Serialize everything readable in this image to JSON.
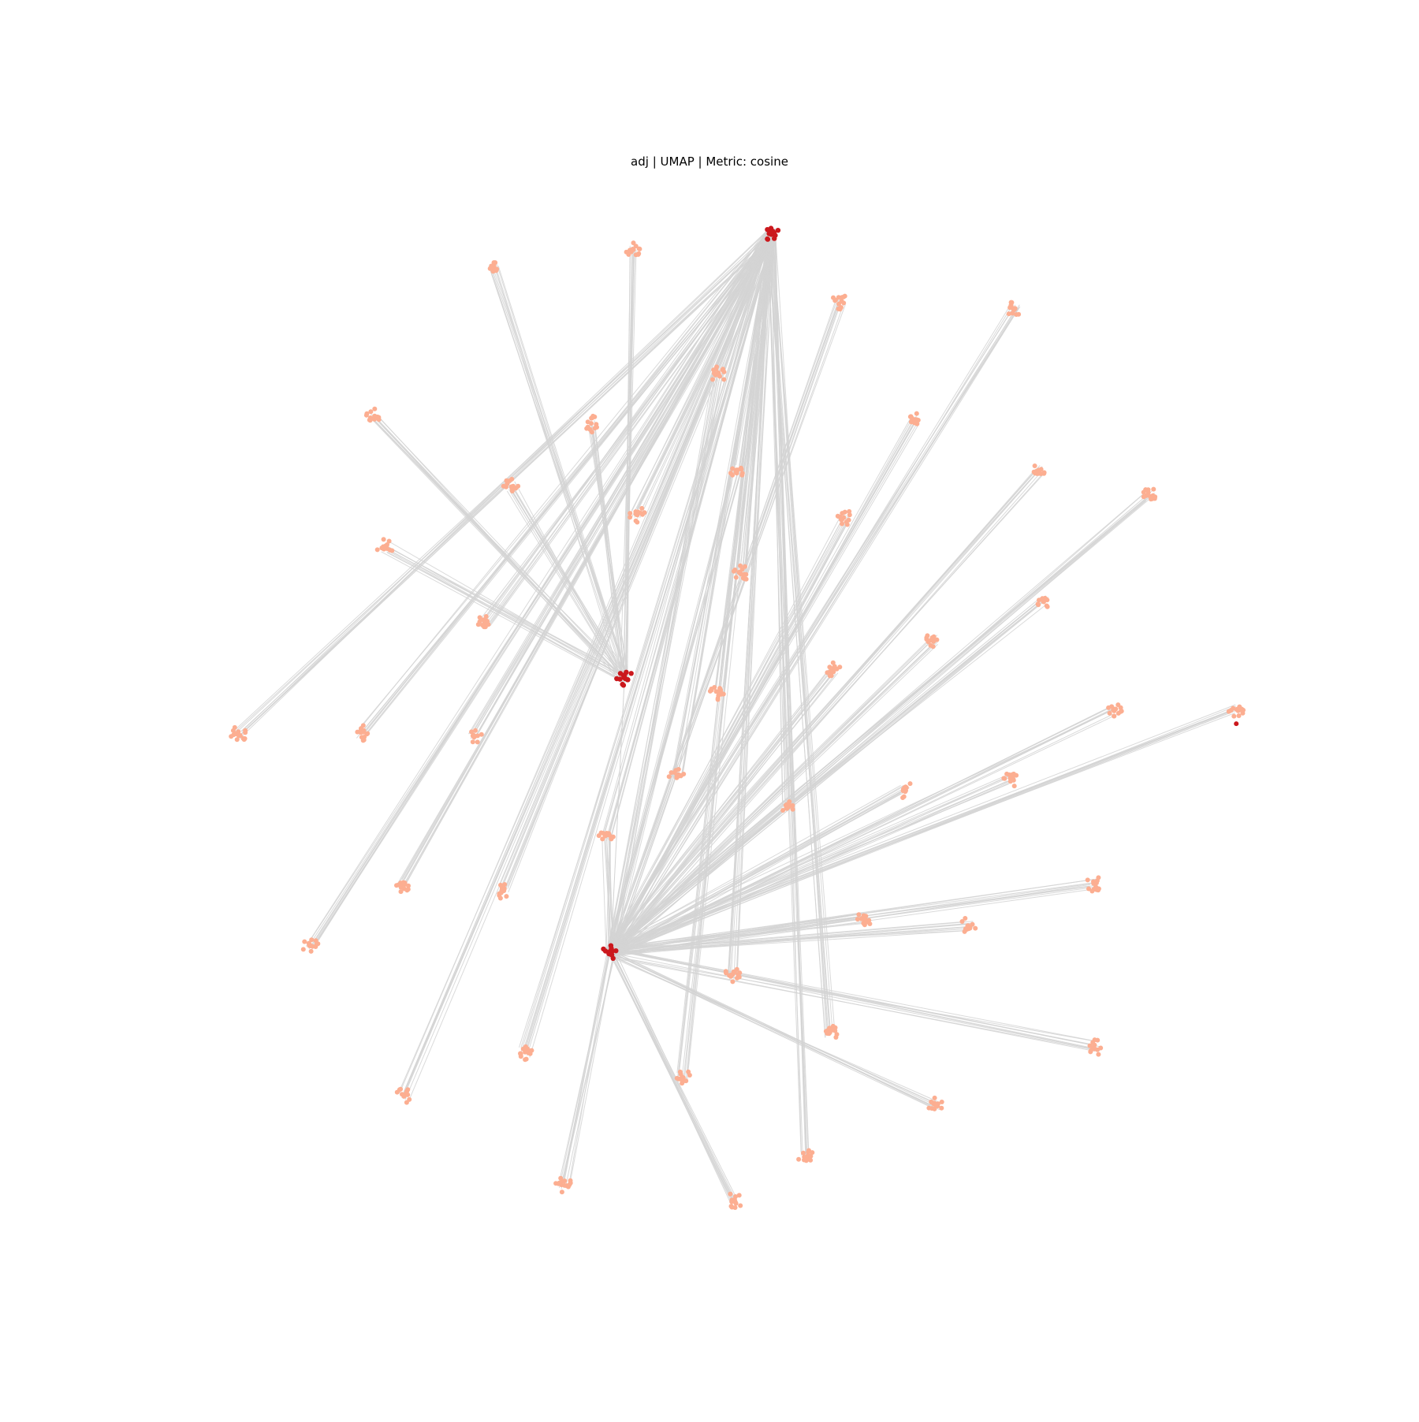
{
  "figure": {
    "title": "adj | UMAP | Metric: cosine"
  },
  "colors": {
    "background": "#ffffff",
    "edge": "#d3d3d3",
    "hub_node": "#cb181d",
    "leaf_node": "#fcae91"
  },
  "graph": {
    "layout": "UMAP",
    "metric": "cosine",
    "hub_cluster_ids": [
      "hub-a",
      "hub-b",
      "hub-c"
    ],
    "cluster_count": 49
  }
}
